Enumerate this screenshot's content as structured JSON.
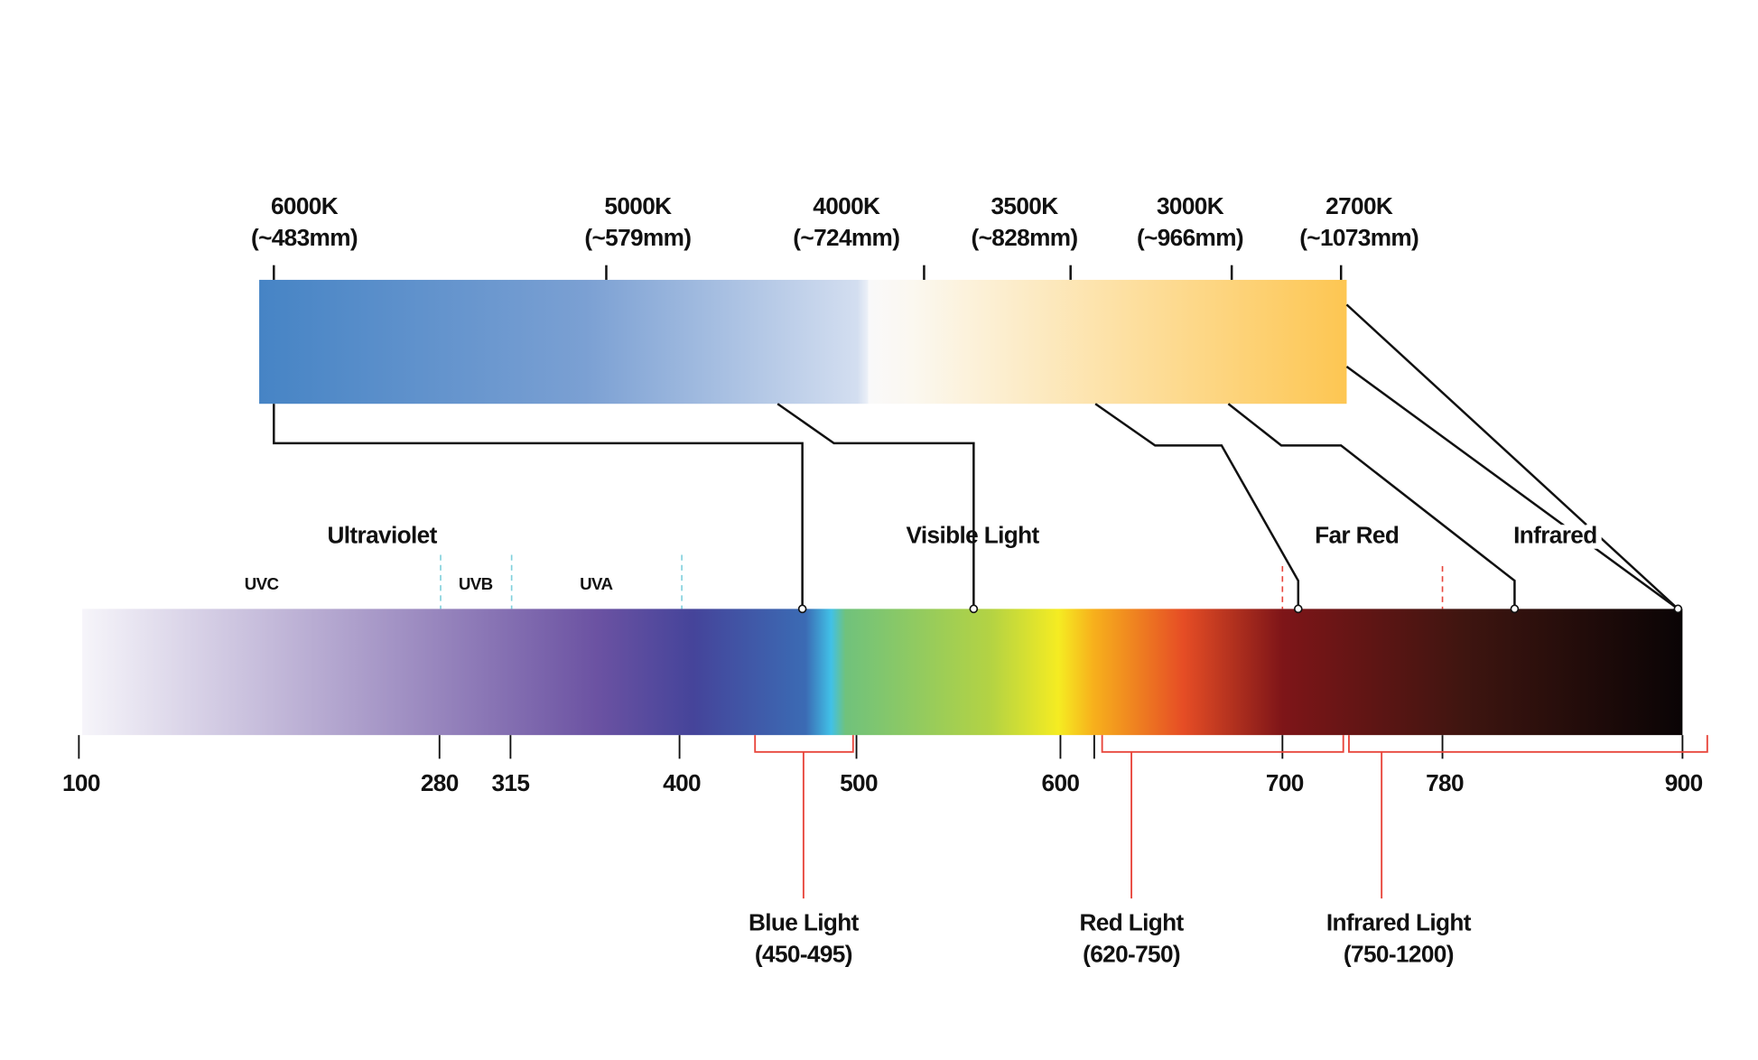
{
  "color_temperatures": [
    {
      "kelvin": "6000K",
      "wavelength": "(~483mm)"
    },
    {
      "kelvin": "5000K",
      "wavelength": "(~579mm)"
    },
    {
      "kelvin": "4000K",
      "wavelength": "(~724mm)"
    },
    {
      "kelvin": "3500K",
      "wavelength": "(~828mm)"
    },
    {
      "kelvin": "3000K",
      "wavelength": "(~966mm)"
    },
    {
      "kelvin": "2700K",
      "wavelength": "(~1073mm)"
    }
  ],
  "regions": [
    "Ultraviolet",
    "Visible Light",
    "Far Red",
    "Infrared"
  ],
  "uv_bands": [
    "UVC",
    "UVB",
    "UVA"
  ],
  "scale_ticks": [
    "100",
    "280",
    "315",
    "400",
    "500",
    "600",
    "700",
    "780",
    "900"
  ],
  "light_ranges": [
    {
      "name": "Blue Light",
      "range": "(450-495)"
    },
    {
      "name": "Red Light",
      "range": "(620-750)"
    },
    {
      "name": "Infrared Light",
      "range": "(750-1200)"
    }
  ]
}
